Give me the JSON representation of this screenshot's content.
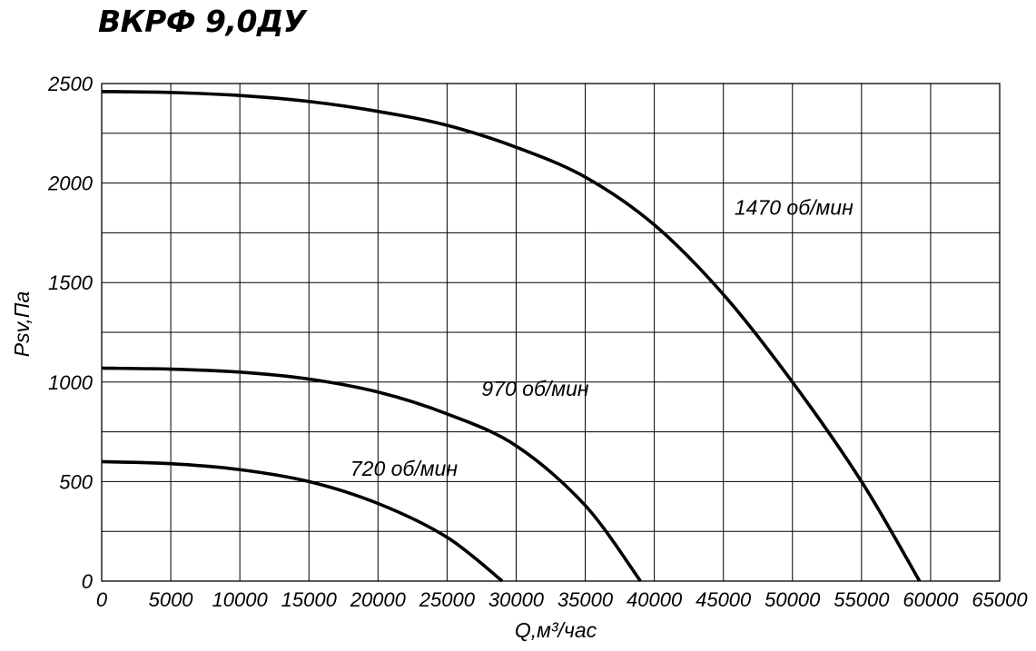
{
  "chart_data": {
    "type": "line",
    "title": "ВКРФ 9,0ДУ",
    "xlabel": "Q,м³/час",
    "ylabel": "Psv,Па",
    "xlim": [
      0,
      65000
    ],
    "ylim": [
      0,
      2500
    ],
    "x_ticks": [
      0,
      5000,
      10000,
      15000,
      20000,
      25000,
      30000,
      35000,
      40000,
      45000,
      50000,
      55000,
      60000,
      65000
    ],
    "x_tick_labels": [
      "0",
      "5000",
      "10000",
      "15000",
      "20000",
      "25000",
      "30000",
      "35000",
      "40000",
      "45000",
      "50000",
      "55000",
      "60000",
      "65000"
    ],
    "y_ticks": [
      0,
      500,
      1000,
      1500,
      2000,
      2500
    ],
    "y_tick_labels": [
      "0",
      "500",
      "1000",
      "1500",
      "2000",
      "2500"
    ],
    "grid": true,
    "series": [
      {
        "name": "1470 об/мин",
        "x": [
          0,
          5000,
          10000,
          15000,
          20000,
          25000,
          30000,
          35000,
          40000,
          45000,
          50000,
          55000,
          59200
        ],
        "y": [
          2460,
          2455,
          2440,
          2410,
          2360,
          2290,
          2180,
          2030,
          1790,
          1440,
          1000,
          500,
          0
        ]
      },
      {
        "name": "970 об/мин",
        "x": [
          0,
          5000,
          10000,
          15000,
          20000,
          25000,
          30000,
          35000,
          39000
        ],
        "y": [
          1070,
          1065,
          1050,
          1015,
          950,
          840,
          680,
          380,
          0
        ]
      },
      {
        "name": "720 об/мин",
        "x": [
          0,
          5000,
          10000,
          15000,
          20000,
          25000,
          29000
        ],
        "y": [
          600,
          590,
          560,
          500,
          390,
          220,
          0
        ]
      }
    ]
  }
}
